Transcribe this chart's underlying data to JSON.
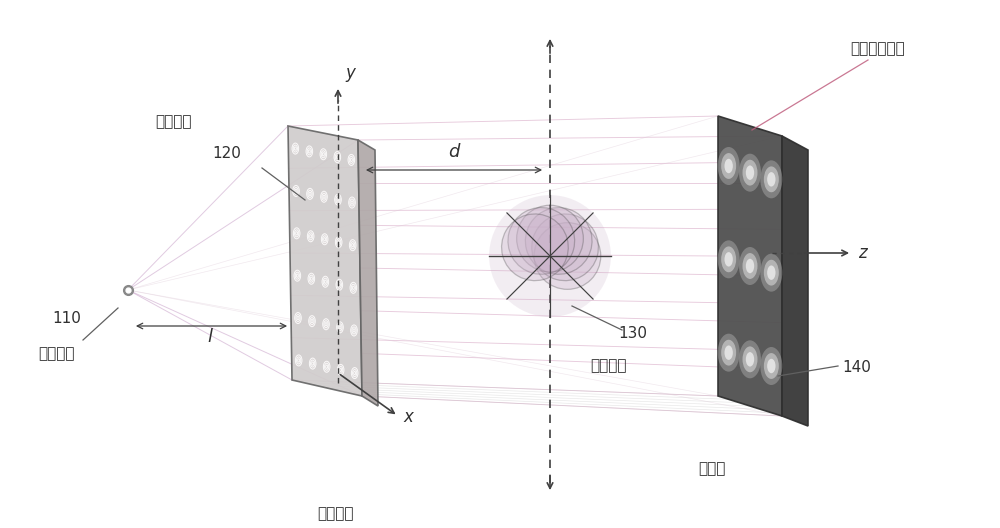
{
  "bg_color": "#ffffff",
  "labels": {
    "source_unit": "出光单元",
    "grating_cell": "光栅元胞",
    "modulated_grating": "调制光栅",
    "sample": "被测样品",
    "detector": "探测器",
    "intensity_cell": "光强分布元胞",
    "num_110": "110",
    "num_120": "120",
    "num_130": "130",
    "num_140": "140",
    "axis_x": "x",
    "axis_y": "y",
    "axis_z": "z",
    "dist_l": "l",
    "dist_d": "d"
  },
  "colors": {
    "grating_face": "#d0cccc",
    "grating_side": "#b0a8a8",
    "detector_face": "#505050",
    "detector_side": "#383838",
    "beam_line": "#c8a0c8",
    "pink_line": "#d4a0c0",
    "gray_line": "#c0c0c0",
    "sample_fill": "#c8b0c8",
    "axis_color": "#404040",
    "annotation_line": "#606060",
    "source_color": "#909090",
    "spot_dark": "#b0b0b0",
    "spot_mid": "#d0d0d0",
    "spot_bright": "#e8e8e8"
  }
}
